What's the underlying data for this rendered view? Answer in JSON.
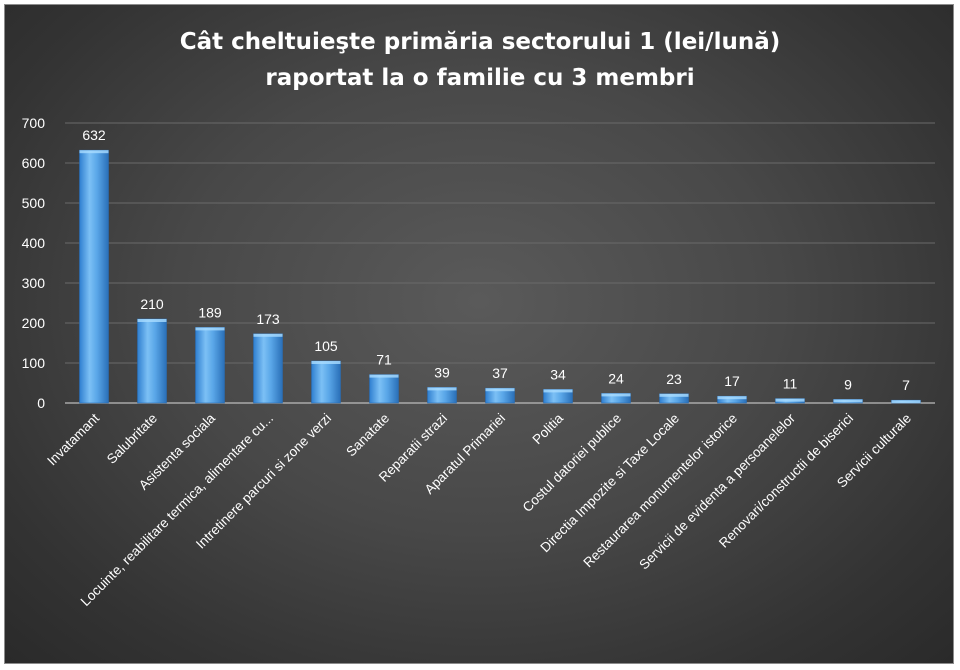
{
  "chart_data": {
    "type": "bar",
    "title": "Cât cheltuieşte primăria sectorului 1 (lei/lună) raportat la o familie cu 3 membri",
    "title_lines": [
      "Cât cheltuieşte primăria sectorului 1 (lei/lună)",
      "raportat la o familie cu 3 membri"
    ],
    "xlabel": "",
    "ylabel": "",
    "ylim": [
      0,
      700
    ],
    "yticks": [
      0,
      100,
      200,
      300,
      400,
      500,
      600,
      700
    ],
    "grid": true,
    "legend": "none",
    "bar_color": "#5aa7e8",
    "background_color": "#444444",
    "categories": [
      "Invatamant",
      "Salubritate",
      "Asistenta sociala",
      "Locuinte, reabilitare termica, alimentare cu...",
      "Intretinere parcuri si zone verzi",
      "Sanatate",
      "Reparatii strazi",
      "Aparatul Primariei",
      "Politia",
      "Costul datoriei publice",
      "Directia Impozite si Taxe Locale",
      "Restaurarea monumentelor istorice",
      "Servicii de evidenta a persoanelelor",
      "Renovari/constructii de biserici",
      "Servicii culturale"
    ],
    "values": [
      632,
      210,
      189,
      173,
      105,
      71,
      39,
      37,
      34,
      24,
      23,
      17,
      11,
      9,
      7
    ]
  }
}
